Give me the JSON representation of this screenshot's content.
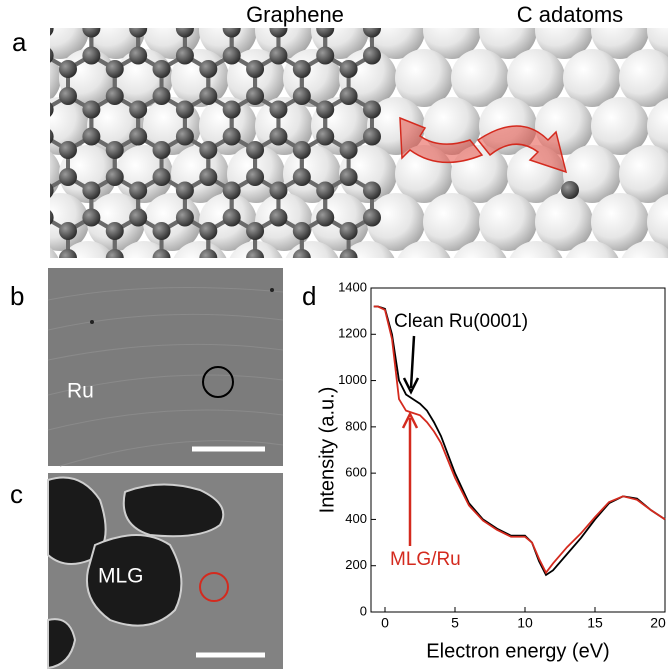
{
  "figure": {
    "panel_a": {
      "label": "a",
      "left_title": "Graphene",
      "right_title": "C adatoms"
    },
    "panel_b": {
      "label": "b",
      "text": "Ru"
    },
    "panel_c": {
      "label": "c",
      "text": "MLG"
    },
    "panel_d": {
      "label": "d"
    }
  },
  "chart_data": {
    "type": "line",
    "xlabel": "Electron energy (eV)",
    "ylabel": "Intensity (a.u.)",
    "x": [
      -0.8,
      -0.5,
      0,
      0.5,
      1,
      1.5,
      2,
      2.5,
      3,
      3.5,
      4,
      5,
      6,
      7,
      8,
      9,
      10,
      10.5,
      11,
      11.5,
      12,
      13,
      14,
      15,
      16,
      17,
      18,
      19,
      20
    ],
    "series": [
      {
        "name": "Clean Ru(0001)",
        "color": "#000000",
        "values": [
          1320,
          1320,
          1310,
          1200,
          1000,
          940,
          920,
          900,
          870,
          820,
          760,
          600,
          470,
          400,
          360,
          330,
          330,
          300,
          220,
          160,
          180,
          250,
          320,
          400,
          470,
          500,
          490,
          440,
          400
        ]
      },
      {
        "name": "MLG/Ru",
        "color": "#d42a1e",
        "values": [
          1320,
          1320,
          1305,
          1180,
          920,
          870,
          860,
          850,
          820,
          780,
          730,
          580,
          460,
          395,
          355,
          325,
          325,
          300,
          230,
          170,
          210,
          280,
          340,
          410,
          475,
          500,
          485,
          440,
          400
        ]
      }
    ],
    "xlim": [
      -1,
      20
    ],
    "xticks": [
      0,
      5,
      10,
      15,
      20
    ],
    "ylim": [
      0,
      1400
    ],
    "yticks": [
      0,
      200,
      400,
      600,
      800,
      1000,
      1200,
      1400
    ]
  }
}
